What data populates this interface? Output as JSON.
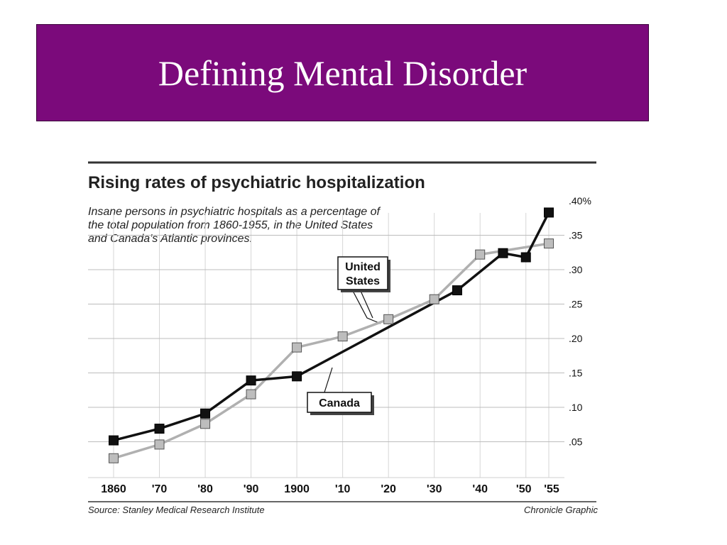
{
  "slide": {
    "title": "Defining Mental Disorder",
    "title_bg": "#7b0a7b"
  },
  "chart_data": {
    "type": "line",
    "title": "Rising rates of psychiatric hospitalization",
    "subtitle_lines": [
      "Insane persons in psychiatric hospitals as a percentage of",
      "the total population from 1860-1955, in the United States",
      "and Canada's Atlantic provinces."
    ],
    "x_ticks": [
      {
        "label": "1860",
        "year": 1860
      },
      {
        "label": "'70",
        "year": 1870
      },
      {
        "label": "'80",
        "year": 1880
      },
      {
        "label": "'90",
        "year": 1890
      },
      {
        "label": "1900",
        "year": 1900
      },
      {
        "label": "'10",
        "year": 1910
      },
      {
        "label": "'20",
        "year": 1920
      },
      {
        "label": "'30",
        "year": 1930
      },
      {
        "label": "'40",
        "year": 1940
      },
      {
        "label": "'50",
        "year": 1950
      },
      {
        "label": "'55",
        "year": 1955
      }
    ],
    "y_ticks": [
      {
        "label": ".05",
        "value": 0.05
      },
      {
        "label": ".10",
        "value": 0.1
      },
      {
        "label": ".15",
        "value": 0.15
      },
      {
        "label": ".20",
        "value": 0.2
      },
      {
        "label": ".25",
        "value": 0.25
      },
      {
        "label": ".30",
        "value": 0.3
      },
      {
        "label": ".35",
        "value": 0.35
      },
      {
        "label": ".40%",
        "value": 0.4
      }
    ],
    "xlim": [
      1860,
      1955
    ],
    "ylim": [
      0,
      0.4
    ],
    "grid": "vertical",
    "series": [
      {
        "name": "United States",
        "color": "#111111",
        "marker_fill": "#111111",
        "points": [
          [
            1860,
            0.052
          ],
          [
            1870,
            0.069
          ],
          [
            1880,
            0.091
          ],
          [
            1890,
            0.139
          ],
          [
            1900,
            0.145
          ],
          [
            1935,
            0.27
          ],
          [
            1945,
            0.324
          ],
          [
            1950,
            0.318
          ],
          [
            1955,
            0.383
          ]
        ]
      },
      {
        "name": "Canada",
        "color": "#b0b0b0",
        "marker_fill": "#bdbdbd",
        "points": [
          [
            1860,
            0.026
          ],
          [
            1870,
            0.046
          ],
          [
            1880,
            0.076
          ],
          [
            1890,
            0.119
          ],
          [
            1900,
            0.187
          ],
          [
            1910,
            0.203
          ],
          [
            1920,
            0.228
          ],
          [
            1930,
            0.257
          ],
          [
            1940,
            0.322
          ],
          [
            1955,
            0.338
          ]
        ]
      }
    ],
    "annotations": {
      "us_label": [
        "United",
        "States"
      ],
      "canada_label": "Canada"
    },
    "source": "Source: Stanley Medical Research Institute",
    "credit": "Chronicle Graphic"
  }
}
